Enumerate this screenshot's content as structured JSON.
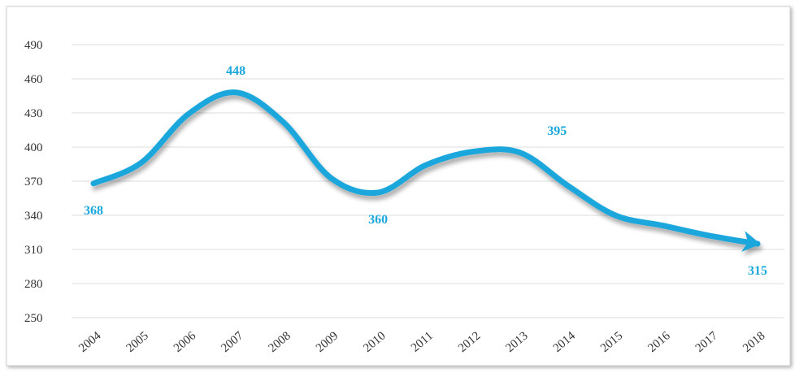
{
  "chart_data": {
    "type": "line",
    "categories": [
      "2004",
      "2005",
      "2006",
      "2007",
      "2008",
      "2009",
      "2010",
      "2011",
      "2012",
      "2013",
      "2014",
      "2015",
      "2016",
      "2017",
      "2018"
    ],
    "series": [
      {
        "color": "#1aa7dc",
        "values": [
          368,
          386,
          429,
          448,
          422,
          373,
          360,
          384,
          396,
          395,
          366,
          340,
          331,
          322,
          315
        ],
        "value_labels": [
          "368",
          null,
          null,
          "448",
          null,
          null,
          "360",
          null,
          null,
          "395",
          null,
          null,
          null,
          null,
          "315"
        ]
      }
    ],
    "ylim": [
      250,
      490
    ],
    "yticks": [
      250,
      280,
      310,
      340,
      370,
      400,
      430,
      460,
      490
    ],
    "grid": true
  }
}
